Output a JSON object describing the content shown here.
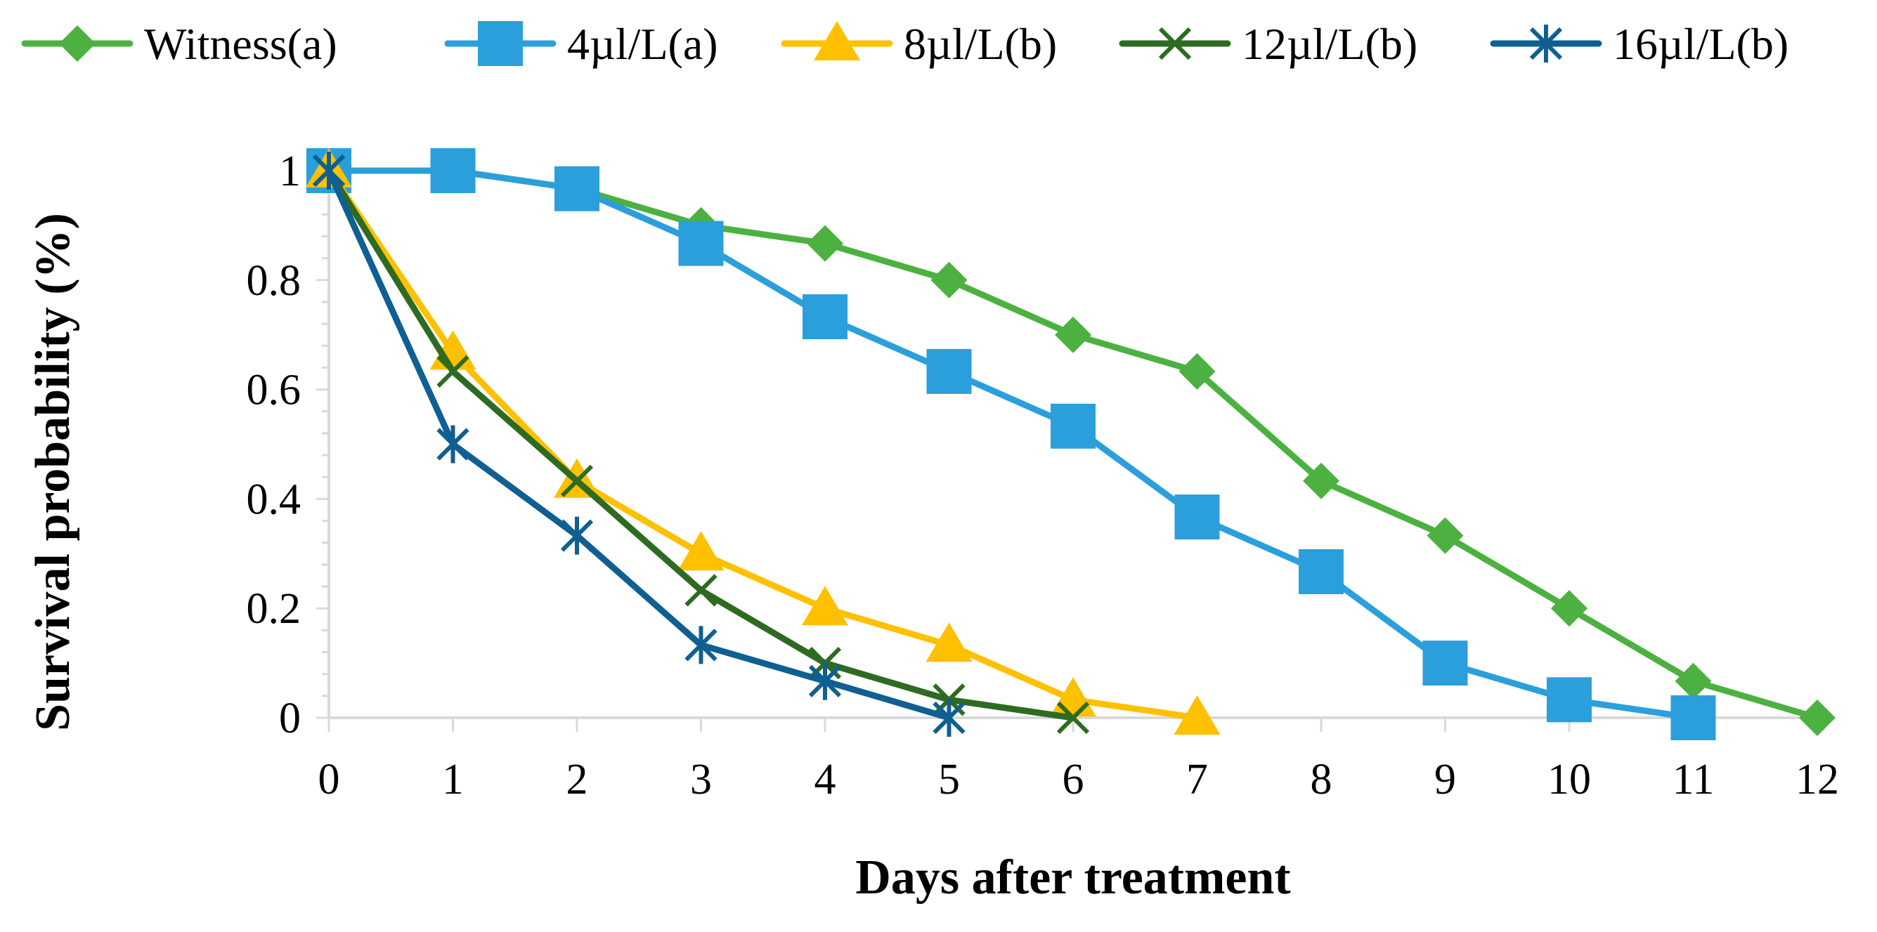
{
  "chart_data": {
    "type": "line",
    "title": "",
    "xlabel": "Days after treatment",
    "ylabel": "Survival probability (%)",
    "xlim": [
      0,
      12
    ],
    "ylim": [
      0,
      1
    ],
    "x_ticks": [
      "0",
      "1",
      "2",
      "3",
      "4",
      "5",
      "6",
      "7",
      "8",
      "9",
      "10",
      "11",
      "12"
    ],
    "y_ticks": [
      "0",
      "0.2",
      "0.4",
      "0.6",
      "0.8",
      "1"
    ],
    "grid": false,
    "legend_position": "top",
    "series": [
      {
        "name": "Witness(a)",
        "color": "#4CB140",
        "marker": "diamond",
        "x": [
          0,
          1,
          2,
          3,
          4,
          5,
          6,
          7,
          8,
          9,
          10,
          11,
          12
        ],
        "y": [
          1,
          1,
          0.967,
          0.9,
          0.867,
          0.8,
          0.7,
          0.633,
          0.433,
          0.333,
          0.2,
          0.067,
          0
        ]
      },
      {
        "name": "4µl/L(a)",
        "color": "#2B9FDB",
        "marker": "square",
        "x": [
          0,
          1,
          2,
          3,
          4,
          5,
          6,
          7,
          8,
          9,
          10,
          11
        ],
        "y": [
          1,
          1,
          0.967,
          0.867,
          0.733,
          0.633,
          0.533,
          0.367,
          0.267,
          0.1,
          0.033,
          0
        ]
      },
      {
        "name": "8µl/L(b)",
        "color": "#FFC000",
        "marker": "triangle",
        "x": [
          0,
          1,
          2,
          3,
          4,
          5,
          6,
          7
        ],
        "y": [
          1,
          0.667,
          0.433,
          0.3,
          0.2,
          0.133,
          0.033,
          0
        ]
      },
      {
        "name": "12µl/L(b)",
        "color": "#2E6B22",
        "marker": "x",
        "x": [
          0,
          1,
          2,
          3,
          4,
          5,
          6
        ],
        "y": [
          1,
          0.633,
          0.433,
          0.233,
          0.1,
          0.033,
          0
        ]
      },
      {
        "name": "16µl/L(b)",
        "color": "#0F5F92",
        "marker": "asterisk",
        "x": [
          0,
          1,
          2,
          3,
          4,
          5
        ],
        "y": [
          1,
          0.5,
          0.333,
          0.133,
          0.067,
          0
        ]
      }
    ]
  }
}
